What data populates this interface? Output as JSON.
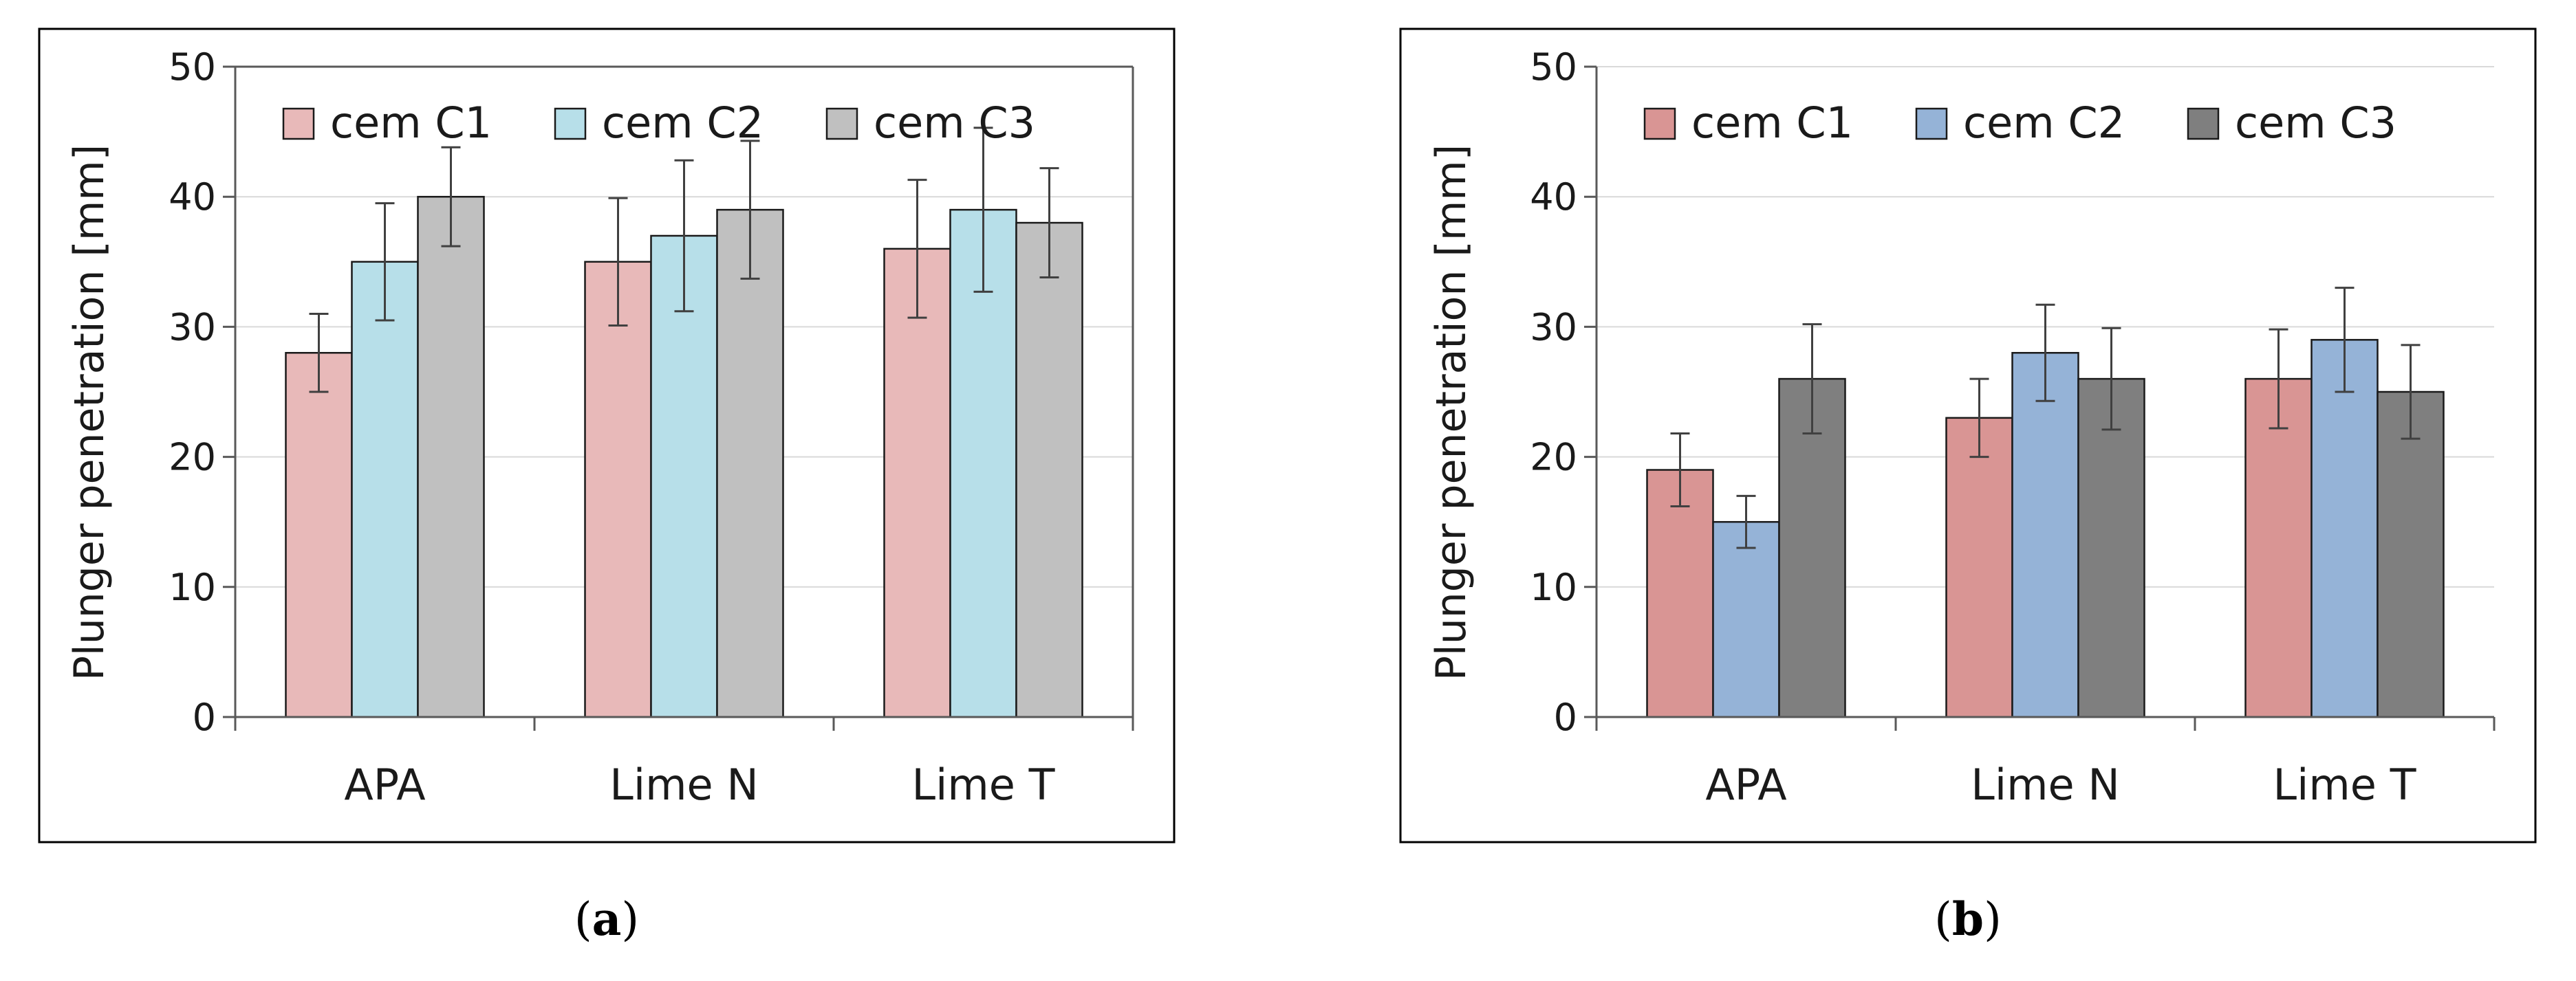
{
  "chart_data": [
    {
      "panel": "a",
      "type": "bar",
      "categories": [
        "APA",
        "Lime N",
        "Lime T"
      ],
      "ylabel": "Plunger penetration [mm]",
      "xlabel": "",
      "ylim": [
        0,
        50
      ],
      "yticks": [
        0,
        10,
        20,
        30,
        40,
        50
      ],
      "grid": true,
      "legend_position": "top",
      "series": [
        {
          "name": "cem C1",
          "color": "#e8b9b9",
          "values": [
            28,
            35,
            36
          ],
          "errors": [
            3,
            4.9,
            5.3
          ]
        },
        {
          "name": "cem C2",
          "color": "#b7dfe9",
          "values": [
            35,
            37,
            39
          ],
          "errors": [
            4.5,
            5.8,
            6.3
          ]
        },
        {
          "name": "cem C3",
          "color": "#c0c0c0",
          "values": [
            40,
            39,
            38
          ],
          "errors": [
            3.8,
            5.3,
            4.2
          ]
        }
      ]
    },
    {
      "panel": "b",
      "type": "bar",
      "categories": [
        "APA",
        "Lime N",
        "Lime T"
      ],
      "ylabel": "Plunger penetration [mm]",
      "xlabel": "",
      "ylim": [
        0,
        50
      ],
      "yticks": [
        0,
        10,
        20,
        30,
        40,
        50
      ],
      "grid": true,
      "legend_position": "top",
      "series": [
        {
          "name": "cem C1",
          "color": "#d99594",
          "values": [
            19,
            23,
            26
          ],
          "errors": [
            2.8,
            3,
            3.8
          ]
        },
        {
          "name": "cem C2",
          "color": "#95b3d7",
          "values": [
            15,
            28,
            29
          ],
          "errors": [
            2,
            3.7,
            4
          ]
        },
        {
          "name": "cem C3",
          "color": "#7f7f7f",
          "values": [
            26,
            26,
            25
          ],
          "errors": [
            4.2,
            3.9,
            3.6
          ]
        }
      ]
    }
  ],
  "panel_labels": [
    "a",
    "b"
  ]
}
